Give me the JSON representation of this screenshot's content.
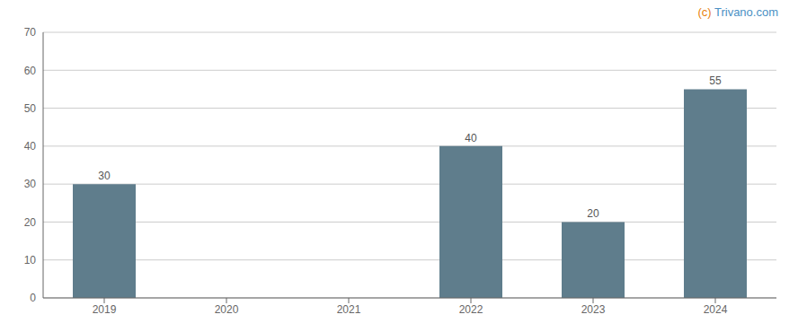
{
  "chart_data": {
    "type": "bar",
    "categories": [
      "2019",
      "2020",
      "2021",
      "2022",
      "2023",
      "2024"
    ],
    "values": [
      30,
      0,
      0,
      40,
      20,
      55
    ],
    "color": "#5f7d8c",
    "ylim": [
      0,
      70
    ],
    "yticks": [
      0,
      10,
      20,
      30,
      40,
      50,
      60,
      70
    ],
    "grid": true,
    "data_labels": true,
    "annotations": [
      {
        "text": "(c) ",
        "color": "#e8820c"
      },
      {
        "text": "Trivano.com",
        "color": "#4a90c4"
      }
    ]
  }
}
